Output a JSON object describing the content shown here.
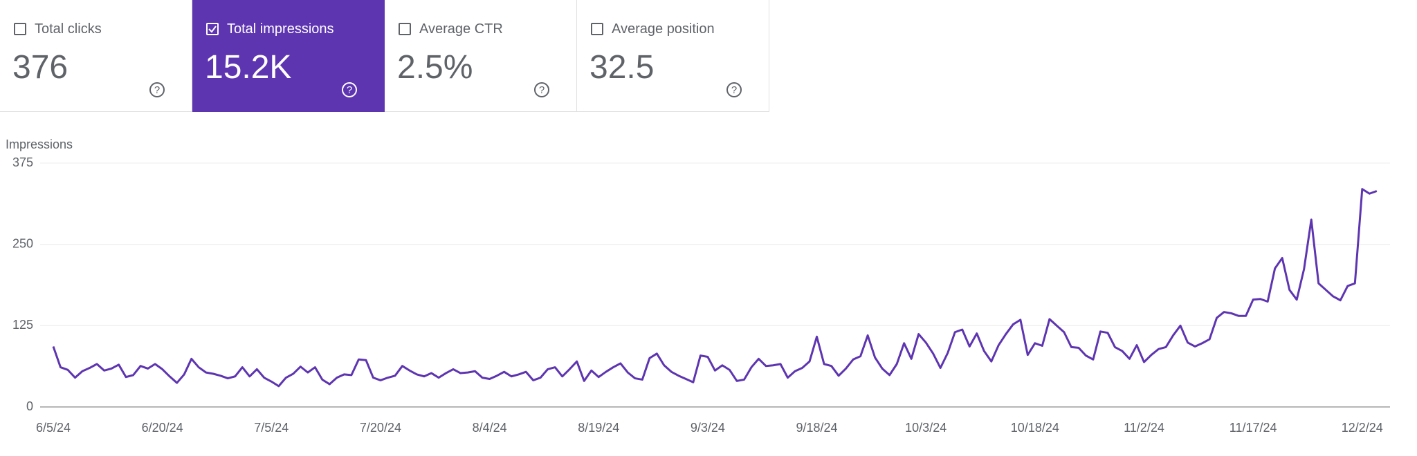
{
  "cards": [
    {
      "label": "Total clicks",
      "value": "376"
    },
    {
      "label": "Total impressions",
      "value": "15.2K"
    },
    {
      "label": "Average CTR",
      "value": "2.5%"
    },
    {
      "label": "Average position",
      "value": "32.5"
    }
  ],
  "chart_data": {
    "type": "line",
    "y_label": "Impressions",
    "color": "#5e35b1",
    "grid": true,
    "ylim": [
      0,
      375
    ],
    "yticks": [
      0,
      125,
      250,
      375
    ],
    "x": [
      "6/5/24",
      "6/6/24",
      "6/7/24",
      "6/8/24",
      "6/9/24",
      "6/10/24",
      "6/11/24",
      "6/12/24",
      "6/13/24",
      "6/14/24",
      "6/15/24",
      "6/16/24",
      "6/17/24",
      "6/18/24",
      "6/19/24",
      "6/20/24",
      "6/21/24",
      "6/22/24",
      "6/23/24",
      "6/24/24",
      "6/25/24",
      "6/26/24",
      "6/27/24",
      "6/28/24",
      "6/29/24",
      "6/30/24",
      "7/1/24",
      "7/2/24",
      "7/3/24",
      "7/4/24",
      "7/5/24",
      "7/6/24",
      "7/7/24",
      "7/8/24",
      "7/9/24",
      "7/10/24",
      "7/11/24",
      "7/12/24",
      "7/13/24",
      "7/14/24",
      "7/15/24",
      "7/16/24",
      "7/17/24",
      "7/18/24",
      "7/19/24",
      "7/20/24",
      "7/21/24",
      "7/22/24",
      "7/23/24",
      "7/24/24",
      "7/25/24",
      "7/26/24",
      "7/27/24",
      "7/28/24",
      "7/29/24",
      "7/30/24",
      "7/31/24",
      "8/1/24",
      "8/2/24",
      "8/3/24",
      "8/4/24",
      "8/5/24",
      "8/6/24",
      "8/7/24",
      "8/8/24",
      "8/9/24",
      "8/10/24",
      "8/11/24",
      "8/12/24",
      "8/13/24",
      "8/14/24",
      "8/15/24",
      "8/16/24",
      "8/17/24",
      "8/18/24",
      "8/19/24",
      "8/20/24",
      "8/21/24",
      "8/22/24",
      "8/23/24",
      "8/24/24",
      "8/25/24",
      "8/26/24",
      "8/27/24",
      "8/28/24",
      "8/29/24",
      "8/30/24",
      "8/31/24",
      "9/1/24",
      "9/2/24",
      "9/3/24",
      "9/4/24",
      "9/5/24",
      "9/6/24",
      "9/7/24",
      "9/8/24",
      "9/9/24",
      "9/10/24",
      "9/11/24",
      "9/12/24",
      "9/13/24",
      "9/14/24",
      "9/15/24",
      "9/16/24",
      "9/17/24",
      "9/18/24",
      "9/19/24",
      "9/20/24",
      "9/21/24",
      "9/22/24",
      "9/23/24",
      "9/24/24",
      "9/25/24",
      "9/26/24",
      "9/27/24",
      "9/28/24",
      "9/29/24",
      "9/30/24",
      "10/1/24",
      "10/2/24",
      "10/3/24",
      "10/4/24",
      "10/5/24",
      "10/6/24",
      "10/7/24",
      "10/8/24",
      "10/9/24",
      "10/10/24",
      "10/11/24",
      "10/12/24",
      "10/13/24",
      "10/14/24",
      "10/15/24",
      "10/16/24",
      "10/17/24",
      "10/18/24",
      "10/19/24",
      "10/20/24",
      "10/21/24",
      "10/22/24",
      "10/23/24",
      "10/24/24",
      "10/25/24",
      "10/26/24",
      "10/27/24",
      "10/28/24",
      "10/29/24",
      "10/30/24",
      "10/31/24",
      "11/1/24",
      "11/2/24",
      "11/3/24",
      "11/4/24",
      "11/5/24",
      "11/6/24",
      "11/7/24",
      "11/8/24",
      "11/9/24",
      "11/10/24",
      "11/11/24",
      "11/12/24",
      "11/13/24",
      "11/14/24",
      "11/15/24",
      "11/16/24",
      "11/17/24",
      "11/18/24",
      "11/19/24",
      "11/20/24",
      "11/21/24",
      "11/22/24",
      "11/23/24",
      "11/24/24",
      "11/25/24",
      "11/26/24",
      "11/27/24",
      "11/28/24",
      "11/29/24",
      "11/30/24",
      "12/1/24",
      "12/2/24",
      "12/3/24",
      "12/4/24"
    ],
    "values": [
      93,
      61,
      57,
      45,
      55,
      60,
      66,
      56,
      59,
      65,
      46,
      49,
      63,
      59,
      66,
      58,
      47,
      37,
      50,
      74,
      61,
      53,
      51,
      48,
      44,
      47,
      61,
      47,
      58,
      45,
      39,
      32,
      45,
      51,
      62,
      53,
      61,
      42,
      35,
      45,
      50,
      49,
      73,
      72,
      45,
      41,
      45,
      48,
      63,
      56,
      50,
      47,
      52,
      45,
      52,
      58,
      52,
      53,
      55,
      45,
      43,
      48,
      54,
      47,
      50,
      54,
      41,
      45,
      58,
      61,
      47,
      58,
      70,
      40,
      56,
      46,
      54,
      61,
      67,
      53,
      44,
      42,
      75,
      82,
      64,
      54,
      48,
      43,
      38,
      79,
      77,
      56,
      64,
      57,
      40,
      42,
      61,
      74,
      63,
      64,
      66,
      45,
      55,
      60,
      70,
      108,
      66,
      63,
      48,
      59,
      73,
      78,
      110,
      76,
      59,
      49,
      66,
      98,
      74,
      112,
      99,
      82,
      60,
      83,
      115,
      119,
      93,
      113,
      86,
      70,
      95,
      112,
      127,
      134,
      80,
      98,
      94,
      135,
      125,
      115,
      92,
      91,
      79,
      73,
      116,
      114,
      92,
      86,
      74,
      95,
      69,
      80,
      89,
      92,
      110,
      125,
      99,
      93,
      98,
      104,
      137,
      146,
      144,
      140,
      140,
      165,
      166,
      162,
      213,
      229,
      180,
      165,
      212,
      288,
      190,
      180,
      170,
      164,
      186,
      190,
      335,
      328,
      332
    ]
  }
}
